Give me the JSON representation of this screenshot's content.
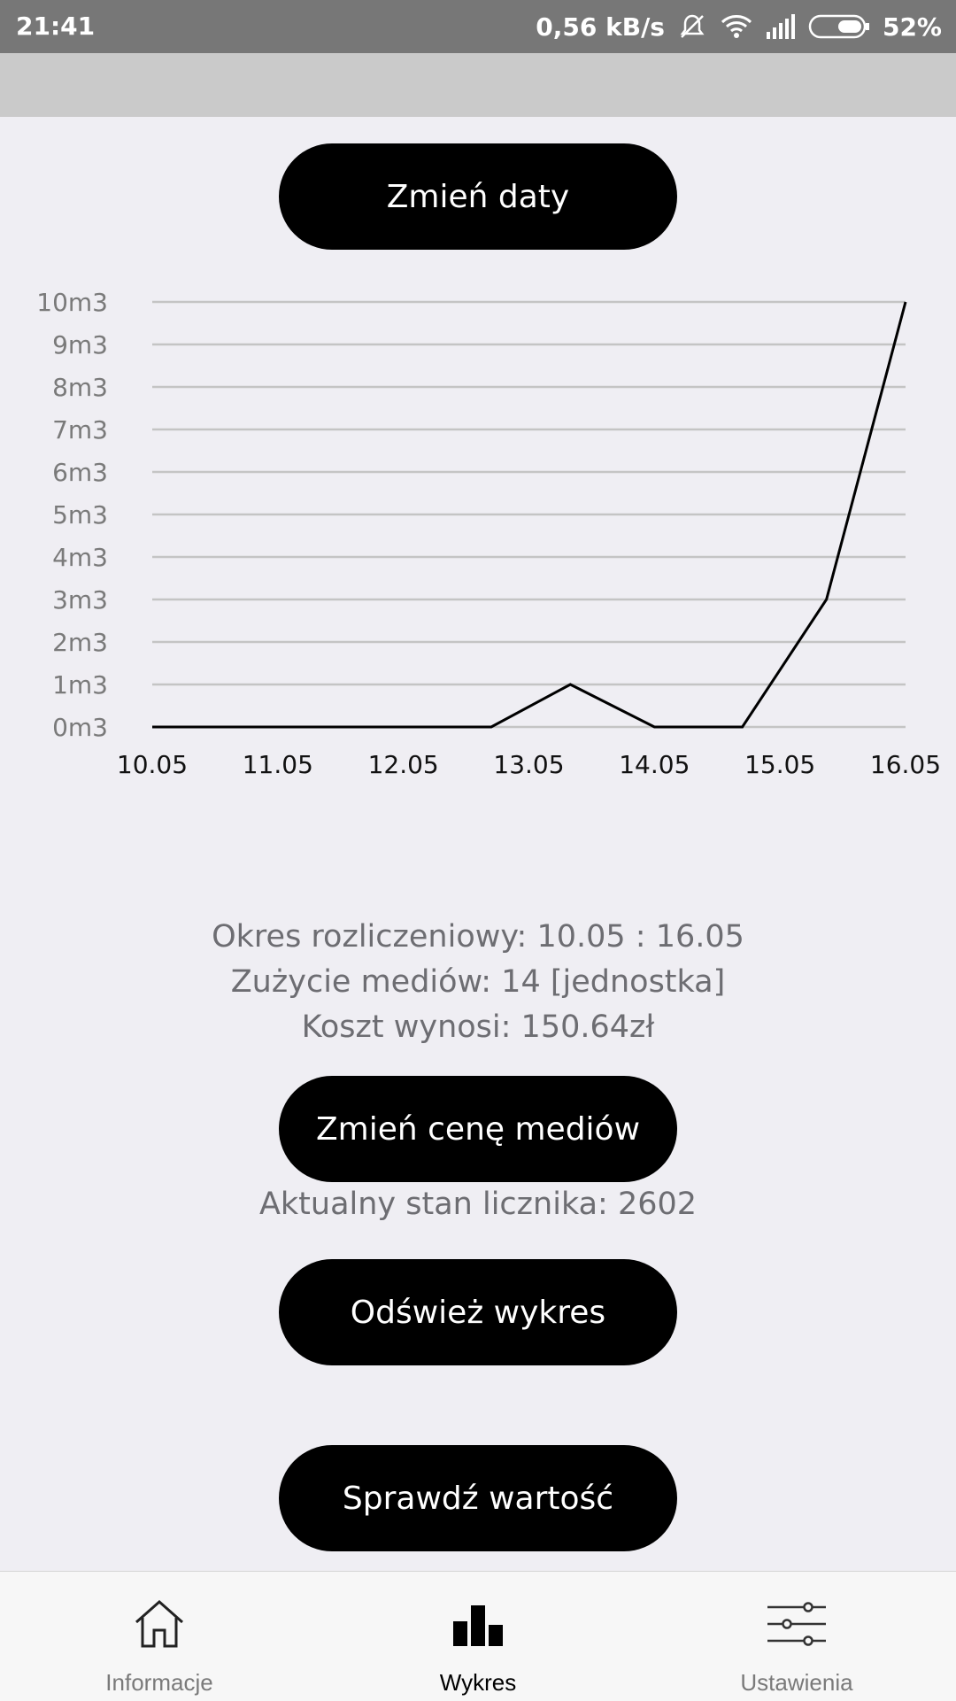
{
  "status_bar": {
    "time": "21:41",
    "speed": "0,56 kB/s",
    "battery": "52%"
  },
  "buttons": {
    "change_dates": "Zmień daty",
    "change_price": "Zmień cenę mediów",
    "refresh_chart": "Odśwież wykres",
    "check_value": "Sprawdź wartość"
  },
  "info": {
    "period": "Okres rozliczeniowy: 10.05 : 16.05",
    "usage": "Zużycie mediów: 14 [jednostka]",
    "cost": "Koszt wynosi: 150.64zł",
    "meter": "Aktualny stan licznika: 2602"
  },
  "chart_data": {
    "type": "line",
    "categories": [
      "10.05",
      "11.05",
      "12.05",
      "13.05",
      "14.05",
      "15.05",
      "16.05"
    ],
    "x": [
      0,
      1,
      2,
      2.7,
      3.33,
      4,
      4.7,
      5.37,
      6
    ],
    "y": [
      0,
      0,
      0,
      0,
      1,
      0,
      0,
      3,
      10
    ],
    "yticks": [
      "0m3",
      "1m3",
      "2m3",
      "3m3",
      "4m3",
      "5m3",
      "6m3",
      "7m3",
      "8m3",
      "9m3",
      "10m3"
    ],
    "ylim": [
      0,
      10
    ],
    "grid": true,
    "line_color": "#000000",
    "grid_color": "#c4c4c4"
  },
  "nav": {
    "items": [
      {
        "label": "Informacje",
        "icon": "home-icon"
      },
      {
        "label": "Wykres",
        "icon": "bar-chart-icon"
      },
      {
        "label": "Ustawienia",
        "icon": "sliders-icon"
      }
    ],
    "active_index": 1
  }
}
